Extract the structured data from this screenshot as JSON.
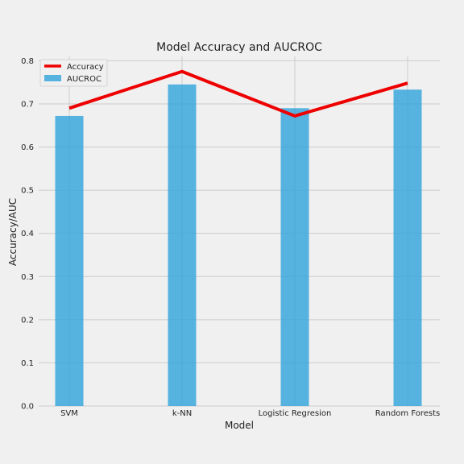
{
  "chart_data": {
    "type": "bar",
    "title": "Model Accuracy and AUCROC",
    "xlabel": "Model",
    "ylabel": "Accuracy/AUC",
    "categories": [
      "SVM",
      "k-NN",
      "Logistic Regresion",
      "Random Forests"
    ],
    "series": [
      {
        "name": "AUCROC",
        "type": "bar",
        "color": "#30a2da",
        "values": [
          0.672,
          0.745,
          0.69,
          0.733
        ]
      },
      {
        "name": "Accuracy",
        "type": "line",
        "color": "#ee0000",
        "values": [
          0.69,
          0.775,
          0.672,
          0.748
        ]
      }
    ],
    "ylim": [
      0,
      0.81
    ],
    "yticks": [
      "0.0",
      "0.1",
      "0.2",
      "0.3",
      "0.4",
      "0.5",
      "0.6",
      "0.7",
      "0.8"
    ],
    "grid": true,
    "legend": "top-left",
    "legend_entries": [
      "Accuracy",
      "AUCROC"
    ]
  }
}
